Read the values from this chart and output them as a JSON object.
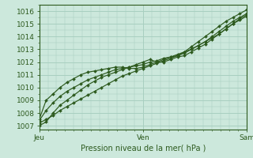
{
  "bg_color": "#cce8dc",
  "grid_color": "#a8cfc0",
  "line_color": "#2d5a1e",
  "marker_color": "#2d5a1e",
  "ylabel_ticks": [
    1007,
    1008,
    1009,
    1010,
    1011,
    1012,
    1013,
    1014,
    1015,
    1016
  ],
  "ylim": [
    1006.7,
    1016.5
  ],
  "xlim": [
    0,
    2.0
  ],
  "xlabel": "Pression niveau de la mer( hPa )",
  "xtick_labels": [
    "Jeu",
    "Ven",
    "Sam"
  ],
  "xtick_positions": [
    0.0,
    1.0,
    2.0
  ],
  "series": [
    [
      1007.2,
      1007.5,
      1007.8,
      1008.2,
      1008.5,
      1008.8,
      1009.1,
      1009.4,
      1009.7,
      1010.0,
      1010.3,
      1010.6,
      1010.9,
      1011.1,
      1011.3,
      1011.5,
      1011.7,
      1011.9,
      1012.1,
      1012.3,
      1012.5,
      1012.8,
      1013.2,
      1013.6,
      1014.0,
      1014.4,
      1014.8,
      1015.2,
      1015.5,
      1015.8,
      1016.1
    ],
    [
      1007.4,
      1008.2,
      1008.8,
      1009.3,
      1009.7,
      1010.0,
      1010.3,
      1010.6,
      1010.8,
      1011.0,
      1011.2,
      1011.4,
      1011.5,
      1011.6,
      1011.7,
      1011.8,
      1012.0,
      1012.1,
      1012.3,
      1012.4,
      1012.5,
      1012.7,
      1013.0,
      1013.3,
      1013.6,
      1014.0,
      1014.4,
      1014.8,
      1015.2,
      1015.5,
      1015.8
    ],
    [
      1007.0,
      1007.3,
      1008.0,
      1008.6,
      1009.0,
      1009.4,
      1009.8,
      1010.2,
      1010.5,
      1010.8,
      1011.0,
      1011.2,
      1011.4,
      1011.6,
      1011.8,
      1012.0,
      1012.2,
      1012.0,
      1012.0,
      1012.2,
      1012.4,
      1012.5,
      1012.8,
      1013.1,
      1013.4,
      1013.8,
      1014.2,
      1014.6,
      1015.0,
      1015.4,
      1015.7
    ],
    [
      1007.5,
      1009.0,
      1009.5,
      1010.0,
      1010.4,
      1010.7,
      1011.0,
      1011.2,
      1011.3,
      1011.4,
      1011.5,
      1011.6,
      1011.6,
      1011.5,
      1011.5,
      1011.6,
      1011.8,
      1012.0,
      1012.2,
      1012.4,
      1012.6,
      1012.8,
      1013.0,
      1013.3,
      1013.6,
      1013.9,
      1014.2,
      1014.6,
      1015.0,
      1015.3,
      1015.6
    ]
  ]
}
